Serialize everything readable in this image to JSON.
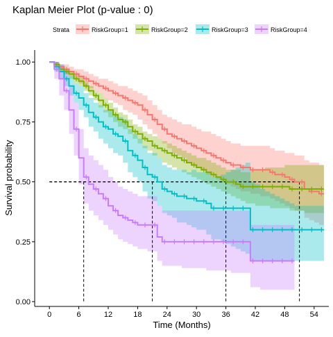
{
  "chart_data": {
    "type": "line",
    "subtype": "kaplan-meier",
    "title": "Kaplan Meier Plot (p-value : 0)",
    "xlabel": "Time (Months)",
    "ylabel": "Survival probability",
    "xlim": [
      -3,
      57
    ],
    "ylim": [
      -0.02,
      1.05
    ],
    "xticks": [
      0,
      6,
      12,
      18,
      24,
      30,
      36,
      42,
      48,
      54
    ],
    "yticks": [
      0.0,
      0.25,
      0.5,
      0.75,
      1.0
    ],
    "ytick_labels": [
      "0.00",
      "0.25",
      "0.50",
      "0.75",
      "1.00"
    ],
    "grid": false,
    "legend": {
      "placement": "top",
      "title": "Strata"
    },
    "median_reference_line": 0.5,
    "medians": [
      51,
      36,
      21,
      7
    ],
    "series": [
      {
        "name": "RiskGroup=1",
        "color": "#F8766D",
        "x": [
          0,
          1,
          2,
          3,
          4,
          5,
          6,
          7,
          8,
          9,
          10,
          11,
          12,
          13,
          14,
          15,
          16,
          17,
          18,
          19,
          20,
          21,
          22,
          23,
          24,
          25,
          26,
          27,
          28,
          29,
          30,
          31,
          32,
          33,
          34,
          35,
          36,
          37,
          38,
          39,
          40,
          41,
          42,
          43,
          44,
          45,
          46,
          47,
          48,
          49,
          50,
          51,
          52,
          53,
          54,
          55,
          56
        ],
        "y": [
          1.0,
          0.99,
          0.98,
          0.97,
          0.96,
          0.95,
          0.94,
          0.93,
          0.92,
          0.91,
          0.9,
          0.89,
          0.88,
          0.87,
          0.86,
          0.85,
          0.84,
          0.83,
          0.82,
          0.8,
          0.78,
          0.76,
          0.74,
          0.72,
          0.7,
          0.69,
          0.68,
          0.67,
          0.66,
          0.65,
          0.64,
          0.63,
          0.62,
          0.61,
          0.6,
          0.59,
          0.58,
          0.57,
          0.57,
          0.56,
          0.56,
          0.55,
          0.55,
          0.55,
          0.55,
          0.54,
          0.53,
          0.53,
          0.52,
          0.51,
          0.5,
          0.5,
          0.47,
          0.46,
          0.46,
          0.45,
          0.45
        ],
        "lower": [
          1.0,
          0.98,
          0.97,
          0.95,
          0.94,
          0.93,
          0.91,
          0.9,
          0.89,
          0.88,
          0.87,
          0.85,
          0.84,
          0.83,
          0.82,
          0.8,
          0.79,
          0.78,
          0.76,
          0.74,
          0.72,
          0.7,
          0.68,
          0.66,
          0.64,
          0.62,
          0.61,
          0.6,
          0.58,
          0.57,
          0.56,
          0.55,
          0.53,
          0.52,
          0.51,
          0.5,
          0.49,
          0.48,
          0.47,
          0.46,
          0.46,
          0.45,
          0.45,
          0.44,
          0.44,
          0.43,
          0.42,
          0.41,
          0.4,
          0.39,
          0.38,
          0.38,
          0.35,
          0.34,
          0.33,
          0.32,
          0.32
        ],
        "upper": [
          1.0,
          1.0,
          0.99,
          0.99,
          0.98,
          0.97,
          0.97,
          0.96,
          0.95,
          0.94,
          0.93,
          0.93,
          0.92,
          0.91,
          0.9,
          0.9,
          0.89,
          0.88,
          0.87,
          0.86,
          0.84,
          0.82,
          0.8,
          0.78,
          0.77,
          0.76,
          0.75,
          0.74,
          0.74,
          0.73,
          0.72,
          0.71,
          0.71,
          0.7,
          0.69,
          0.68,
          0.67,
          0.66,
          0.66,
          0.65,
          0.65,
          0.65,
          0.65,
          0.65,
          0.65,
          0.64,
          0.63,
          0.63,
          0.62,
          0.62,
          0.61,
          0.61,
          0.59,
          0.58,
          0.58,
          0.57,
          0.57
        ]
      },
      {
        "name": "RiskGroup=2",
        "color": "#7CAE00",
        "x": [
          0,
          1,
          2,
          3,
          4,
          5,
          6,
          7,
          8,
          9,
          10,
          11,
          12,
          13,
          14,
          15,
          16,
          17,
          18,
          19,
          20,
          21,
          22,
          23,
          24,
          25,
          26,
          27,
          28,
          29,
          30,
          31,
          32,
          33,
          34,
          35,
          36,
          37,
          38,
          39,
          40,
          41,
          42,
          43,
          44,
          45,
          46,
          47,
          48,
          49,
          50,
          51,
          52,
          53,
          54,
          55,
          56
        ],
        "y": [
          1.0,
          0.99,
          0.97,
          0.96,
          0.95,
          0.93,
          0.92,
          0.9,
          0.88,
          0.86,
          0.84,
          0.82,
          0.8,
          0.78,
          0.76,
          0.75,
          0.73,
          0.71,
          0.7,
          0.68,
          0.67,
          0.65,
          0.64,
          0.63,
          0.62,
          0.61,
          0.6,
          0.59,
          0.58,
          0.57,
          0.56,
          0.55,
          0.54,
          0.53,
          0.52,
          0.51,
          0.5,
          0.5,
          0.49,
          0.48,
          0.48,
          0.48,
          0.48,
          0.48,
          0.48,
          0.48,
          0.48,
          0.48,
          0.48,
          0.47,
          0.47,
          0.47,
          0.47,
          0.47,
          0.47,
          0.47,
          0.47
        ],
        "lower": [
          1.0,
          0.98,
          0.96,
          0.95,
          0.93,
          0.91,
          0.9,
          0.88,
          0.86,
          0.84,
          0.81,
          0.79,
          0.77,
          0.75,
          0.73,
          0.72,
          0.7,
          0.68,
          0.66,
          0.64,
          0.63,
          0.61,
          0.6,
          0.58,
          0.57,
          0.56,
          0.55,
          0.54,
          0.53,
          0.52,
          0.51,
          0.5,
          0.49,
          0.48,
          0.47,
          0.46,
          0.45,
          0.44,
          0.43,
          0.42,
          0.41,
          0.41,
          0.4,
          0.4,
          0.4,
          0.39,
          0.39,
          0.39,
          0.39,
          0.38,
          0.38,
          0.38,
          0.37,
          0.37,
          0.37,
          0.37,
          0.37
        ],
        "upper": [
          1.0,
          1.0,
          0.98,
          0.97,
          0.96,
          0.95,
          0.94,
          0.92,
          0.9,
          0.88,
          0.87,
          0.85,
          0.83,
          0.81,
          0.79,
          0.78,
          0.76,
          0.74,
          0.73,
          0.71,
          0.7,
          0.69,
          0.68,
          0.67,
          0.66,
          0.65,
          0.64,
          0.63,
          0.62,
          0.61,
          0.6,
          0.6,
          0.59,
          0.58,
          0.57,
          0.56,
          0.55,
          0.55,
          0.55,
          0.54,
          0.54,
          0.55,
          0.55,
          0.55,
          0.56,
          0.56,
          0.56,
          0.56,
          0.57,
          0.57,
          0.57,
          0.57,
          0.57,
          0.57,
          0.57,
          0.57,
          0.57
        ]
      },
      {
        "name": "RiskGroup=3",
        "color": "#00BFC4",
        "x": [
          0,
          1,
          2,
          3,
          4,
          5,
          6,
          7,
          8,
          9,
          10,
          11,
          12,
          13,
          14,
          15,
          16,
          17,
          18,
          19,
          20,
          21,
          22,
          23,
          24,
          25,
          26,
          27,
          28,
          29,
          30,
          31,
          32,
          33,
          34,
          35,
          36,
          37,
          38,
          39,
          40,
          41,
          42,
          43,
          44,
          45,
          46,
          47,
          48,
          49,
          50,
          51,
          52,
          53,
          54,
          55,
          56
        ],
        "y": [
          1.0,
          0.98,
          0.96,
          0.93,
          0.9,
          0.87,
          0.85,
          0.82,
          0.79,
          0.77,
          0.75,
          0.73,
          0.72,
          0.7,
          0.69,
          0.67,
          0.63,
          0.61,
          0.59,
          0.56,
          0.53,
          0.52,
          0.5,
          0.47,
          0.46,
          0.45,
          0.44,
          0.44,
          0.43,
          0.43,
          0.42,
          0.42,
          0.41,
          0.39,
          0.39,
          0.39,
          0.39,
          0.39,
          0.39,
          0.39,
          0.39,
          0.3,
          0.3,
          0.3,
          0.3,
          0.3,
          0.3,
          0.3,
          0.3,
          0.3,
          0.3,
          0.3,
          0.3,
          0.3,
          0.3,
          0.3,
          0.3
        ],
        "lower": [
          1.0,
          0.96,
          0.93,
          0.9,
          0.86,
          0.83,
          0.8,
          0.77,
          0.73,
          0.71,
          0.68,
          0.66,
          0.64,
          0.62,
          0.61,
          0.58,
          0.54,
          0.52,
          0.5,
          0.46,
          0.43,
          0.42,
          0.4,
          0.37,
          0.36,
          0.35,
          0.33,
          0.33,
          0.32,
          0.31,
          0.3,
          0.3,
          0.28,
          0.26,
          0.26,
          0.25,
          0.24,
          0.23,
          0.22,
          0.21,
          0.2,
          0.17,
          0.17,
          0.17,
          0.17,
          0.17,
          0.17,
          0.17,
          0.17,
          0.17,
          0.17,
          0.17,
          0.17,
          0.17,
          0.17,
          0.17,
          0.17
        ],
        "upper": [
          1.0,
          1.0,
          0.99,
          0.97,
          0.94,
          0.91,
          0.9,
          0.87,
          0.85,
          0.83,
          0.82,
          0.8,
          0.8,
          0.78,
          0.77,
          0.76,
          0.72,
          0.7,
          0.68,
          0.65,
          0.62,
          0.62,
          0.6,
          0.57,
          0.56,
          0.55,
          0.55,
          0.55,
          0.54,
          0.55,
          0.54,
          0.54,
          0.54,
          0.52,
          0.52,
          0.53,
          0.54,
          0.55,
          0.56,
          0.57,
          0.58,
          0.5,
          0.49,
          0.47,
          0.46,
          0.45,
          0.44,
          0.43,
          0.42,
          0.41,
          0.4,
          0.4,
          0.4,
          0.4,
          0.4,
          0.4,
          0.4
        ]
      },
      {
        "name": "RiskGroup=4",
        "color": "#C77CFF",
        "x": [
          0,
          1,
          2,
          3,
          4,
          5,
          6,
          7,
          8,
          9,
          10,
          11,
          12,
          13,
          14,
          15,
          16,
          17,
          18,
          19,
          20,
          21,
          22,
          23,
          24,
          25,
          26,
          27,
          28,
          29,
          30,
          31,
          32,
          33,
          34,
          35,
          36,
          37,
          38,
          39,
          40,
          41,
          42,
          43,
          44,
          45,
          46,
          47,
          48,
          49,
          50
        ],
        "y": [
          1.0,
          0.97,
          0.93,
          0.88,
          0.8,
          0.72,
          0.6,
          0.52,
          0.49,
          0.47,
          0.45,
          0.43,
          0.4,
          0.38,
          0.36,
          0.35,
          0.34,
          0.33,
          0.32,
          0.32,
          0.32,
          0.32,
          0.27,
          0.25,
          0.25,
          0.25,
          0.25,
          0.25,
          0.25,
          0.25,
          0.25,
          0.25,
          0.25,
          0.25,
          0.25,
          0.25,
          0.25,
          0.25,
          0.25,
          0.25,
          0.25,
          0.17,
          0.17,
          0.17,
          0.17,
          0.17,
          0.17,
          0.17,
          0.17,
          0.17,
          0.17
        ],
        "lower": [
          1.0,
          0.93,
          0.86,
          0.8,
          0.7,
          0.61,
          0.49,
          0.41,
          0.38,
          0.36,
          0.34,
          0.32,
          0.3,
          0.28,
          0.26,
          0.25,
          0.24,
          0.23,
          0.22,
          0.22,
          0.21,
          0.21,
          0.17,
          0.15,
          0.15,
          0.15,
          0.15,
          0.14,
          0.14,
          0.14,
          0.14,
          0.14,
          0.13,
          0.13,
          0.13,
          0.13,
          0.13,
          0.12,
          0.12,
          0.12,
          0.12,
          0.06,
          0.06,
          0.05,
          0.05,
          0.05,
          0.05,
          0.05,
          0.05,
          0.05,
          0.05
        ],
        "upper": [
          1.0,
          1.0,
          0.99,
          0.96,
          0.9,
          0.83,
          0.72,
          0.64,
          0.61,
          0.59,
          0.57,
          0.55,
          0.52,
          0.5,
          0.48,
          0.47,
          0.46,
          0.45,
          0.44,
          0.44,
          0.44,
          0.44,
          0.4,
          0.38,
          0.38,
          0.38,
          0.38,
          0.38,
          0.38,
          0.38,
          0.38,
          0.38,
          0.38,
          0.38,
          0.38,
          0.38,
          0.38,
          0.38,
          0.38,
          0.38,
          0.38,
          0.32,
          0.32,
          0.32,
          0.32,
          0.32,
          0.32,
          0.32,
          0.32,
          0.32,
          0.32
        ]
      }
    ]
  }
}
